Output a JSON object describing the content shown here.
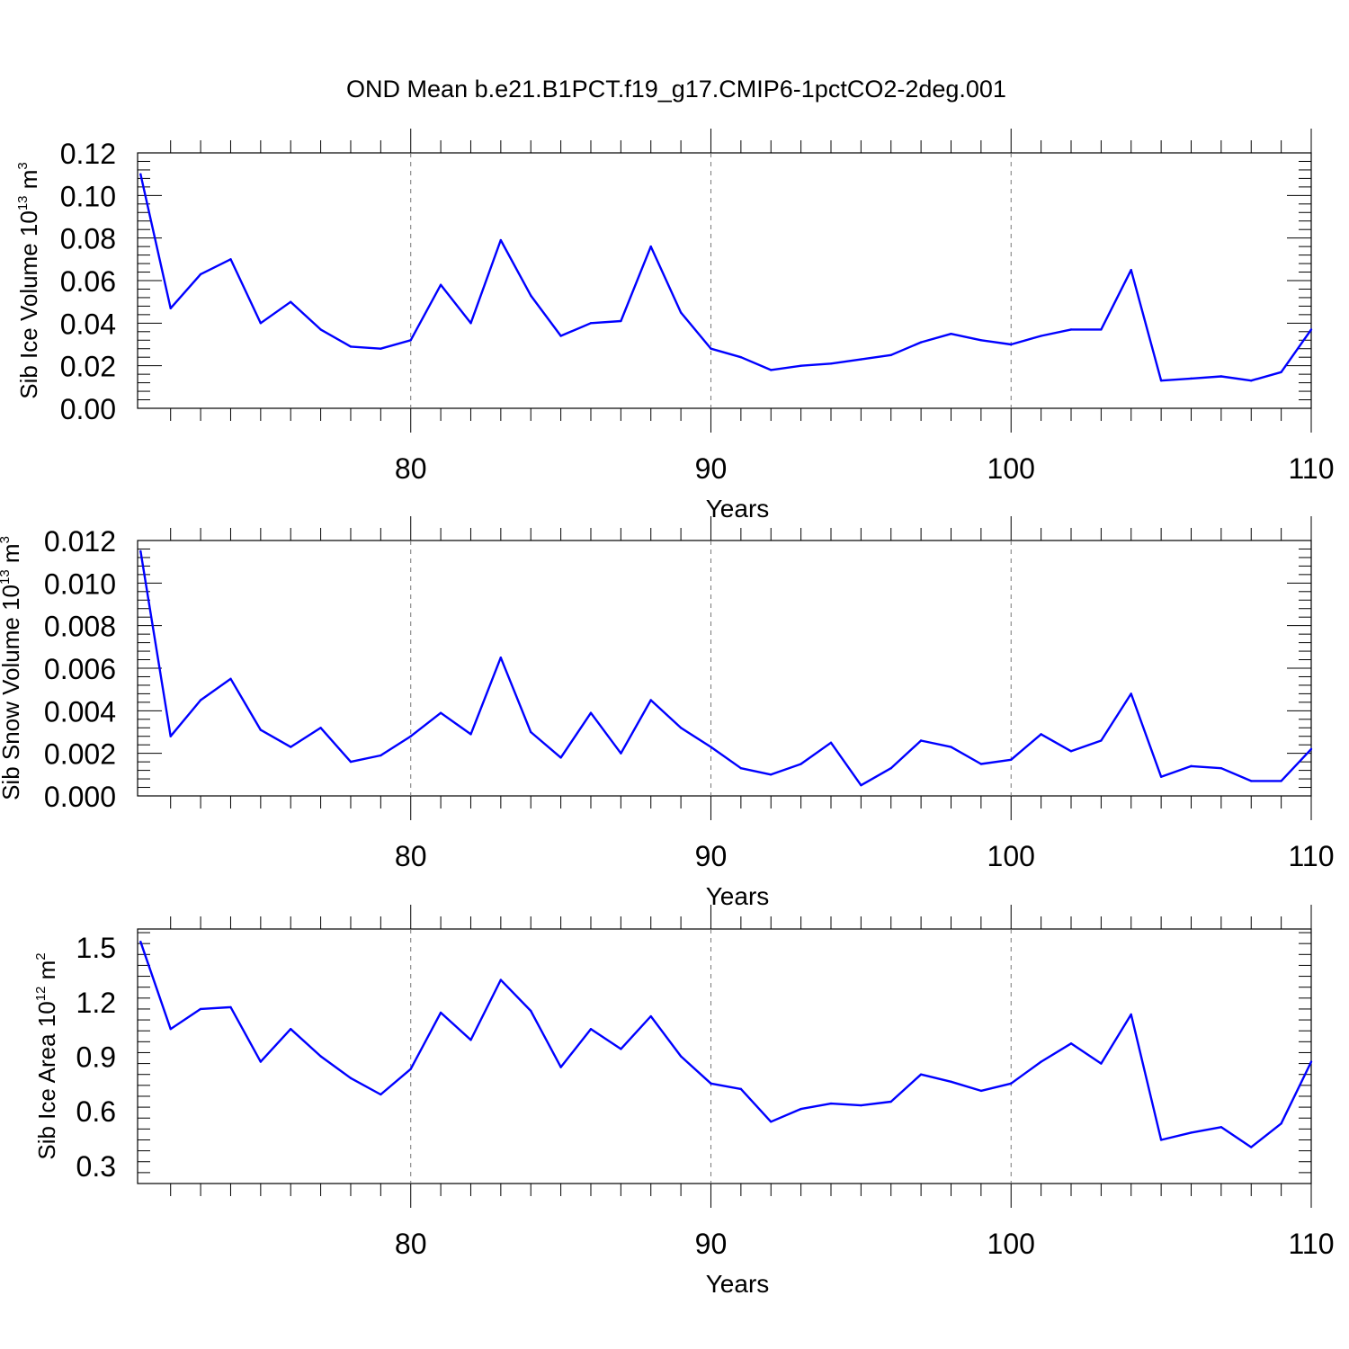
{
  "figure": {
    "title": "OND Mean b.e21.B1PCT.f19_g17.CMIP6-1pctCO2-2deg.001"
  },
  "colors": {
    "series": "#0000ff",
    "axis": "#000000",
    "grid": "#777777"
  },
  "chart_data": [
    {
      "type": "line",
      "title": "OND Mean b.e21.B1PCT.f19_g17.CMIP6-1pctCO2-2deg.001",
      "xlabel": "Years",
      "ylabel": {
        "text": "Sib Ice Volume 10",
        "exp": "13",
        "unit": " m",
        "unit_exp": "3"
      },
      "xlim": [
        71,
        110
      ],
      "ylim": [
        0,
        0.12
      ],
      "xticks": [
        "80",
        "90",
        "100",
        "110"
      ],
      "yticks": [
        "0.00",
        "0.02",
        "0.04",
        "0.06",
        "0.08",
        "0.10",
        "0.12"
      ],
      "grid": "dashed vertical at x=80,90,100",
      "x": [
        71,
        72,
        73,
        74,
        75,
        76,
        77,
        78,
        79,
        80,
        81,
        82,
        83,
        84,
        85,
        86,
        87,
        88,
        89,
        90,
        91,
        92,
        93,
        94,
        95,
        96,
        97,
        98,
        99,
        100,
        101,
        102,
        103,
        104,
        105,
        106,
        107,
        108,
        109,
        110
      ],
      "values": [
        0.11,
        0.047,
        0.063,
        0.07,
        0.04,
        0.05,
        0.037,
        0.029,
        0.028,
        0.032,
        0.058,
        0.04,
        0.079,
        0.053,
        0.034,
        0.04,
        0.041,
        0.076,
        0.045,
        0.028,
        0.024,
        0.018,
        0.02,
        0.021,
        0.023,
        0.025,
        0.031,
        0.035,
        0.032,
        0.03,
        0.034,
        0.037,
        0.037,
        0.065,
        0.013,
        0.014,
        0.015,
        0.013,
        0.017,
        0.037
      ]
    },
    {
      "type": "line",
      "xlabel": "Years",
      "ylabel": {
        "text": "Sib Snow Volume 10",
        "exp": "13",
        "unit": " m",
        "unit_exp": "3"
      },
      "xlim": [
        71,
        110
      ],
      "ylim": [
        0,
        0.012
      ],
      "xticks": [
        "80",
        "90",
        "100",
        "110"
      ],
      "yticks": [
        "0.000",
        "0.002",
        "0.004",
        "0.006",
        "0.008",
        "0.010",
        "0.012"
      ],
      "grid": "dashed vertical at x=80,90,100",
      "x": [
        71,
        72,
        73,
        74,
        75,
        76,
        77,
        78,
        79,
        80,
        81,
        82,
        83,
        84,
        85,
        86,
        87,
        88,
        89,
        90,
        91,
        92,
        93,
        94,
        95,
        96,
        97,
        98,
        99,
        100,
        101,
        102,
        103,
        104,
        105,
        106,
        107,
        108,
        109,
        110
      ],
      "values": [
        0.0115,
        0.0028,
        0.0045,
        0.0055,
        0.0031,
        0.0023,
        0.0032,
        0.0016,
        0.0019,
        0.0028,
        0.0039,
        0.0029,
        0.0065,
        0.003,
        0.0018,
        0.0039,
        0.002,
        0.0045,
        0.0032,
        0.0023,
        0.0013,
        0.001,
        0.0015,
        0.0025,
        0.0005,
        0.0013,
        0.0026,
        0.0023,
        0.0015,
        0.0017,
        0.0029,
        0.0021,
        0.0026,
        0.0048,
        0.0009,
        0.0014,
        0.0013,
        0.0007,
        0.0007,
        0.0022
      ]
    },
    {
      "type": "line",
      "xlabel": "Years",
      "ylabel": {
        "text": "Sib Ice Area 10",
        "exp": "12",
        "unit": " m",
        "unit_exp": "2"
      },
      "xlim": [
        71,
        110
      ],
      "ylim": [
        0.2,
        1.6
      ],
      "xticks": [
        "80",
        "90",
        "100",
        "110"
      ],
      "yticks": [
        "0.3",
        "0.6",
        "0.9",
        "1.2",
        "1.5"
      ],
      "grid": "dashed vertical at x=80,90,100",
      "x": [
        71,
        72,
        73,
        74,
        75,
        76,
        77,
        78,
        79,
        80,
        81,
        82,
        83,
        84,
        85,
        86,
        87,
        88,
        89,
        90,
        91,
        92,
        93,
        94,
        95,
        96,
        97,
        98,
        99,
        100,
        101,
        102,
        103,
        104,
        105,
        106,
        107,
        108,
        109,
        110
      ],
      "values": [
        1.53,
        1.05,
        1.16,
        1.17,
        0.87,
        1.05,
        0.9,
        0.78,
        0.69,
        0.83,
        1.14,
        0.99,
        1.32,
        1.15,
        0.84,
        1.05,
        0.94,
        1.12,
        0.9,
        0.75,
        0.72,
        0.54,
        0.61,
        0.64,
        0.63,
        0.65,
        0.8,
        0.76,
        0.71,
        0.75,
        0.87,
        0.97,
        0.86,
        1.13,
        0.44,
        0.48,
        0.51,
        0.4,
        0.53,
        0.87
      ]
    }
  ]
}
